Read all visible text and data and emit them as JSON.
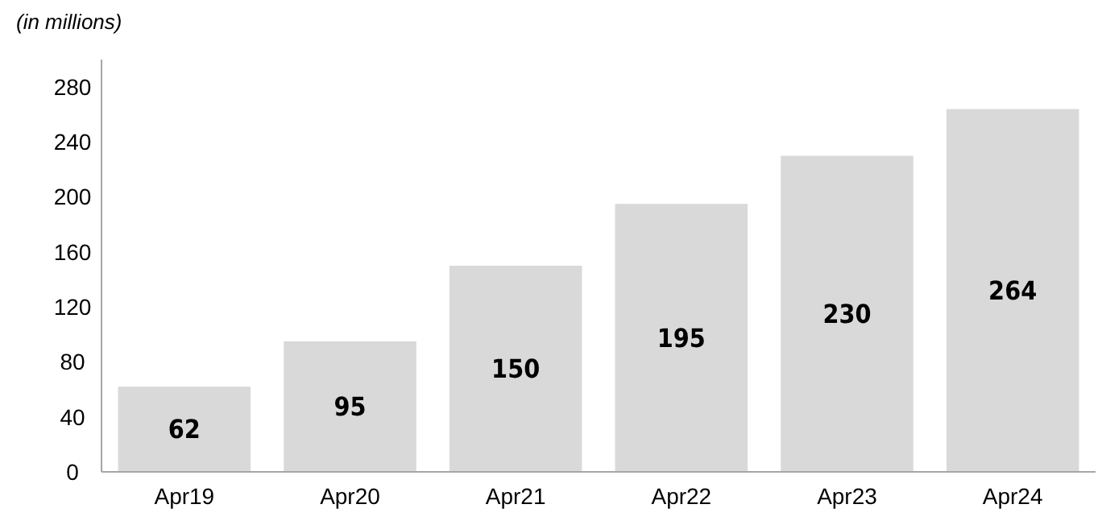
{
  "chart_data": {
    "type": "bar",
    "ylabel": "(in millions)",
    "categories": [
      "Apr19",
      "Apr20",
      "Apr21",
      "Apr22",
      "Apr23",
      "Apr24"
    ],
    "values": [
      62,
      95,
      150,
      195,
      230,
      264
    ],
    "color": "#d9d9d9",
    "ylim": [
      0,
      300
    ],
    "yticks": [
      0,
      40,
      80,
      120,
      160,
      200,
      240,
      280
    ],
    "data_labels": true,
    "grid": false
  }
}
